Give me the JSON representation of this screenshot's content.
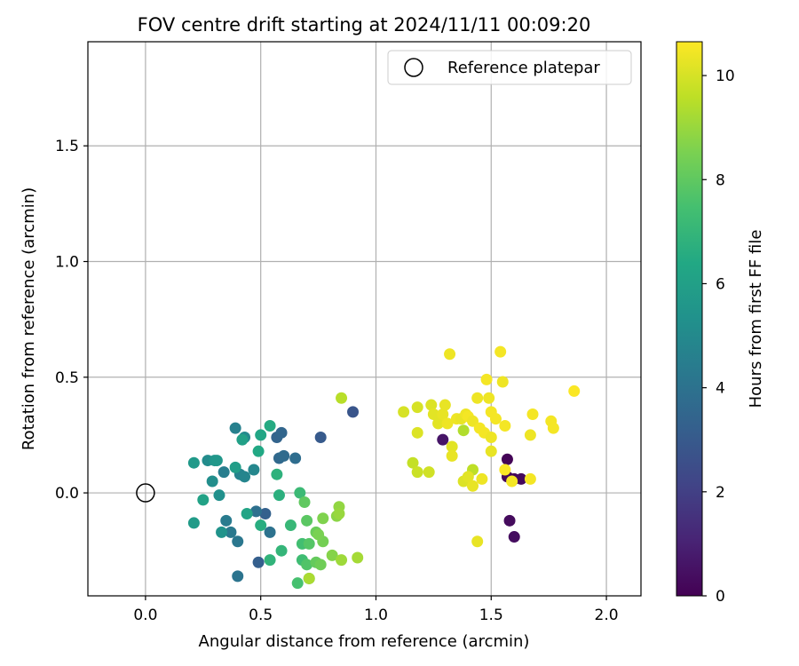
{
  "chart_data": {
    "type": "scatter",
    "title": "FOV centre drift starting at 2024/11/11 00:09:20",
    "xlabel": "Angular distance from reference (arcmin)",
    "ylabel": "Rotation from reference (arcmin)",
    "xlim": [
      -0.25,
      2.15
    ],
    "ylim": [
      -0.445,
      1.95
    ],
    "xticks": [
      0.0,
      0.5,
      1.0,
      1.5,
      2.0
    ],
    "xtick_labels": [
      "0.0",
      "0.5",
      "1.0",
      "1.5",
      "2.0"
    ],
    "yticks": [
      0.0,
      0.5,
      1.0,
      1.5
    ],
    "ytick_labels": [
      "0.0",
      "0.5",
      "1.0",
      "1.5"
    ],
    "grid": true,
    "legend": {
      "placement": "top-right",
      "entries": [
        "Reference platepar"
      ]
    },
    "reference": {
      "x": 0.0,
      "y": 0.0
    },
    "colorbar": {
      "label": "Hours from first FF file",
      "colormap": "viridis",
      "range": [
        0,
        10.65
      ],
      "ticks": [
        0,
        2,
        4,
        6,
        8,
        10
      ],
      "tick_labels": [
        "0",
        "2",
        "4",
        "6",
        "8",
        "10"
      ]
    },
    "points": [
      {
        "x": 1.57,
        "y": 0.145,
        "c": 0.1
      },
      {
        "x": 1.57,
        "y": 0.07,
        "c": 0.15
      },
      {
        "x": 1.6,
        "y": 0.06,
        "c": 0.2
      },
      {
        "x": 1.63,
        "y": 0.06,
        "c": 0.25
      },
      {
        "x": 1.58,
        "y": -0.12,
        "c": 0.3
      },
      {
        "x": 1.6,
        "y": -0.19,
        "c": 0.35
      },
      {
        "x": 1.29,
        "y": 0.23,
        "c": 0.6
      },
      {
        "x": 0.9,
        "y": 0.35,
        "c": 2.8
      },
      {
        "x": 0.76,
        "y": 0.24,
        "c": 3.0
      },
      {
        "x": 0.49,
        "y": -0.3,
        "c": 3.2
      },
      {
        "x": 0.52,
        "y": -0.09,
        "c": 3.3
      },
      {
        "x": 0.57,
        "y": 0.24,
        "c": 3.4
      },
      {
        "x": 0.59,
        "y": 0.26,
        "c": 3.5
      },
      {
        "x": 0.58,
        "y": 0.15,
        "c": 3.6
      },
      {
        "x": 0.6,
        "y": 0.16,
        "c": 3.7
      },
      {
        "x": 0.65,
        "y": 0.15,
        "c": 3.8
      },
      {
        "x": 0.48,
        "y": -0.08,
        "c": 3.9
      },
      {
        "x": 0.54,
        "y": -0.17,
        "c": 4.0
      },
      {
        "x": 0.4,
        "y": -0.36,
        "c": 4.1
      },
      {
        "x": 0.4,
        "y": -0.21,
        "c": 4.2
      },
      {
        "x": 0.37,
        "y": -0.17,
        "c": 4.3
      },
      {
        "x": 0.35,
        "y": -0.12,
        "c": 4.4
      },
      {
        "x": 0.34,
        "y": 0.09,
        "c": 4.5
      },
      {
        "x": 0.39,
        "y": 0.28,
        "c": 4.6
      },
      {
        "x": 0.41,
        "y": 0.08,
        "c": 4.7
      },
      {
        "x": 0.43,
        "y": 0.07,
        "c": 4.8
      },
      {
        "x": 0.47,
        "y": 0.1,
        "c": 4.9
      },
      {
        "x": 0.43,
        "y": 0.24,
        "c": 5.0
      },
      {
        "x": 0.27,
        "y": 0.14,
        "c": 5.1
      },
      {
        "x": 0.29,
        "y": 0.05,
        "c": 5.2
      },
      {
        "x": 0.32,
        "y": -0.01,
        "c": 5.3
      },
      {
        "x": 0.33,
        "y": -0.17,
        "c": 5.4
      },
      {
        "x": 0.3,
        "y": 0.14,
        "c": 5.5
      },
      {
        "x": 0.31,
        "y": 0.14,
        "c": 5.6
      },
      {
        "x": 0.21,
        "y": 0.13,
        "c": 5.7
      },
      {
        "x": 0.21,
        "y": -0.13,
        "c": 5.8
      },
      {
        "x": 0.39,
        "y": 0.11,
        "c": 5.9
      },
      {
        "x": 0.42,
        "y": 0.23,
        "c": 6.0
      },
      {
        "x": 0.25,
        "y": -0.03,
        "c": 6.1
      },
      {
        "x": 0.44,
        "y": -0.09,
        "c": 6.2
      },
      {
        "x": 0.5,
        "y": 0.25,
        "c": 6.3
      },
      {
        "x": 0.49,
        "y": 0.18,
        "c": 6.4
      },
      {
        "x": 0.54,
        "y": 0.29,
        "c": 6.5
      },
      {
        "x": 0.5,
        "y": -0.14,
        "c": 6.6
      },
      {
        "x": 0.58,
        "y": -0.01,
        "c": 6.7
      },
      {
        "x": 0.57,
        "y": 0.08,
        "c": 6.8
      },
      {
        "x": 0.54,
        "y": -0.29,
        "c": 6.9
      },
      {
        "x": 0.59,
        "y": -0.25,
        "c": 7.0
      },
      {
        "x": 0.63,
        "y": -0.14,
        "c": 7.1
      },
      {
        "x": 0.67,
        "y": 0.0,
        "c": 7.2
      },
      {
        "x": 0.68,
        "y": -0.29,
        "c": 7.3
      },
      {
        "x": 0.68,
        "y": -0.22,
        "c": 7.4
      },
      {
        "x": 0.66,
        "y": -0.39,
        "c": 7.5
      },
      {
        "x": 0.71,
        "y": -0.37,
        "c": 7.6
      },
      {
        "x": 0.7,
        "y": -0.31,
        "c": 7.7
      },
      {
        "x": 0.71,
        "y": -0.22,
        "c": 7.8
      },
      {
        "x": 0.7,
        "y": -0.12,
        "c": 7.9
      },
      {
        "x": 0.69,
        "y": -0.04,
        "c": 8.0
      },
      {
        "x": 0.74,
        "y": -0.3,
        "c": 8.1
      },
      {
        "x": 0.74,
        "y": -0.17,
        "c": 8.2
      },
      {
        "x": 0.76,
        "y": -0.31,
        "c": 8.3
      },
      {
        "x": 0.77,
        "y": -0.21,
        "c": 8.4
      },
      {
        "x": 0.75,
        "y": -0.18,
        "c": 8.5
      },
      {
        "x": 0.77,
        "y": -0.11,
        "c": 8.6
      },
      {
        "x": 0.81,
        "y": -0.27,
        "c": 8.7
      },
      {
        "x": 0.83,
        "y": -0.1,
        "c": 8.8
      },
      {
        "x": 0.84,
        "y": -0.06,
        "c": 8.9
      },
      {
        "x": 0.84,
        "y": -0.09,
        "c": 9.0
      },
      {
        "x": 0.85,
        "y": -0.29,
        "c": 9.1
      },
      {
        "x": 0.92,
        "y": -0.28,
        "c": 9.2
      },
      {
        "x": 0.71,
        "y": -0.37,
        "c": 9.3
      },
      {
        "x": 0.85,
        "y": 0.41,
        "c": 9.5
      },
      {
        "x": 1.38,
        "y": 0.27,
        "c": 9.4
      },
      {
        "x": 1.42,
        "y": 0.1,
        "c": 9.6
      },
      {
        "x": 1.16,
        "y": 0.13,
        "c": 9.7
      },
      {
        "x": 1.18,
        "y": 0.09,
        "c": 9.8
      },
      {
        "x": 1.23,
        "y": 0.09,
        "c": 9.9
      },
      {
        "x": 1.12,
        "y": 0.35,
        "c": 10.0
      },
      {
        "x": 1.18,
        "y": 0.37,
        "c": 10.0
      },
      {
        "x": 1.18,
        "y": 0.26,
        "c": 10.1
      },
      {
        "x": 1.24,
        "y": 0.38,
        "c": 10.1
      },
      {
        "x": 1.25,
        "y": 0.34,
        "c": 10.2
      },
      {
        "x": 1.27,
        "y": 0.3,
        "c": 10.2
      },
      {
        "x": 1.29,
        "y": 0.34,
        "c": 10.3
      },
      {
        "x": 1.3,
        "y": 0.38,
        "c": 10.3
      },
      {
        "x": 1.31,
        "y": 0.3,
        "c": 10.4
      },
      {
        "x": 1.32,
        "y": 0.6,
        "c": 10.4
      },
      {
        "x": 1.33,
        "y": 0.2,
        "c": 10.2
      },
      {
        "x": 1.33,
        "y": 0.16,
        "c": 10.3
      },
      {
        "x": 1.35,
        "y": 0.32,
        "c": 10.4
      },
      {
        "x": 1.37,
        "y": 0.32,
        "c": 10.3
      },
      {
        "x": 1.39,
        "y": 0.34,
        "c": 10.4
      },
      {
        "x": 1.4,
        "y": 0.33,
        "c": 10.5
      },
      {
        "x": 1.38,
        "y": 0.05,
        "c": 10.1
      },
      {
        "x": 1.4,
        "y": 0.07,
        "c": 10.2
      },
      {
        "x": 1.42,
        "y": 0.03,
        "c": 10.3
      },
      {
        "x": 1.42,
        "y": 0.31,
        "c": 10.4
      },
      {
        "x": 1.44,
        "y": 0.41,
        "c": 10.4
      },
      {
        "x": 1.45,
        "y": 0.28,
        "c": 10.5
      },
      {
        "x": 1.44,
        "y": -0.21,
        "c": 10.3
      },
      {
        "x": 1.46,
        "y": 0.06,
        "c": 10.4
      },
      {
        "x": 1.47,
        "y": 0.26,
        "c": 10.5
      },
      {
        "x": 1.48,
        "y": 0.49,
        "c": 10.5
      },
      {
        "x": 1.49,
        "y": 0.41,
        "c": 10.4
      },
      {
        "x": 1.5,
        "y": 0.35,
        "c": 10.5
      },
      {
        "x": 1.5,
        "y": 0.24,
        "c": 10.4
      },
      {
        "x": 1.5,
        "y": 0.18,
        "c": 10.3
      },
      {
        "x": 1.52,
        "y": 0.32,
        "c": 10.5
      },
      {
        "x": 1.54,
        "y": 0.61,
        "c": 10.5
      },
      {
        "x": 1.55,
        "y": 0.48,
        "c": 10.4
      },
      {
        "x": 1.56,
        "y": 0.29,
        "c": 10.5
      },
      {
        "x": 1.56,
        "y": 0.1,
        "c": 10.6
      },
      {
        "x": 1.59,
        "y": 0.05,
        "c": 10.5
      },
      {
        "x": 1.67,
        "y": 0.06,
        "c": 10.5
      },
      {
        "x": 1.67,
        "y": 0.25,
        "c": 10.4
      },
      {
        "x": 1.68,
        "y": 0.34,
        "c": 10.5
      },
      {
        "x": 1.76,
        "y": 0.31,
        "c": 10.5
      },
      {
        "x": 1.77,
        "y": 0.28,
        "c": 10.5
      },
      {
        "x": 1.86,
        "y": 0.44,
        "c": 10.6
      }
    ]
  }
}
